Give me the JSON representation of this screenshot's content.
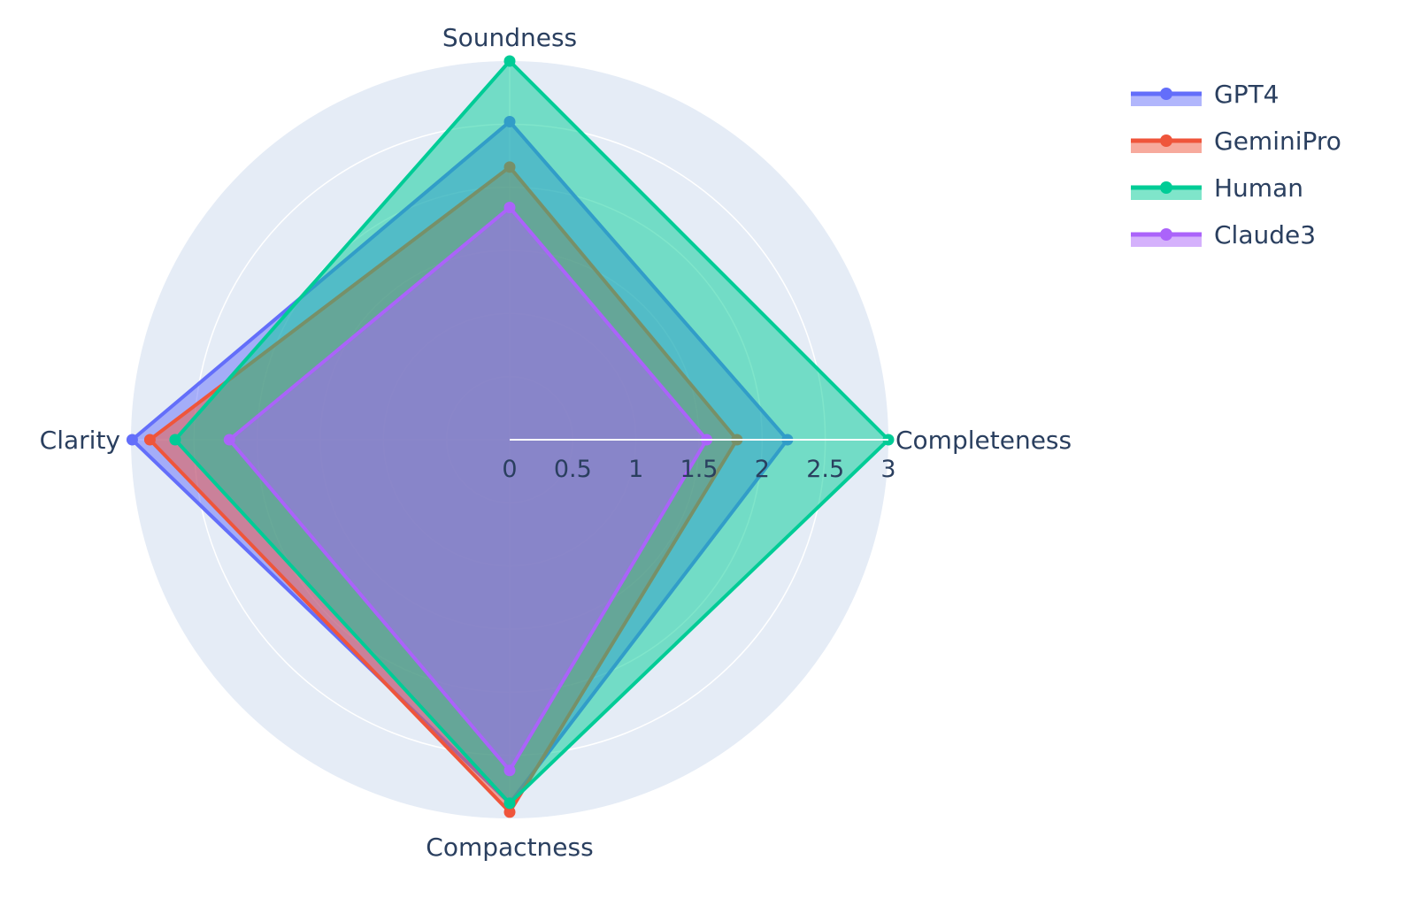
{
  "chart_data": {
    "type": "radar",
    "categories": [
      "Completeness",
      "Soundness",
      "Clarity",
      "Compactness"
    ],
    "radial_range": [
      0,
      3
    ],
    "radial_ticks": [
      "0",
      "0.5",
      "1",
      "1.5",
      "2",
      "2.5",
      "3"
    ],
    "radial_tick_values": [
      0,
      0.5,
      1,
      1.5,
      2,
      2.5,
      3
    ],
    "legend_position": "top-right",
    "series": [
      {
        "name": "GPT4",
        "color": "#636efa",
        "values": [
          2.2,
          2.52,
          2.99,
          2.88
        ]
      },
      {
        "name": "GeminiPro",
        "color": "#EF553B",
        "values": [
          1.8,
          2.16,
          2.85,
          2.95
        ]
      },
      {
        "name": "Human",
        "color": "#00cc96",
        "values": [
          3.0,
          3.0,
          2.65,
          2.88
        ]
      },
      {
        "name": "Claude3",
        "color": "#ab63fa",
        "values": [
          1.56,
          1.84,
          2.22,
          2.62
        ]
      }
    ]
  }
}
